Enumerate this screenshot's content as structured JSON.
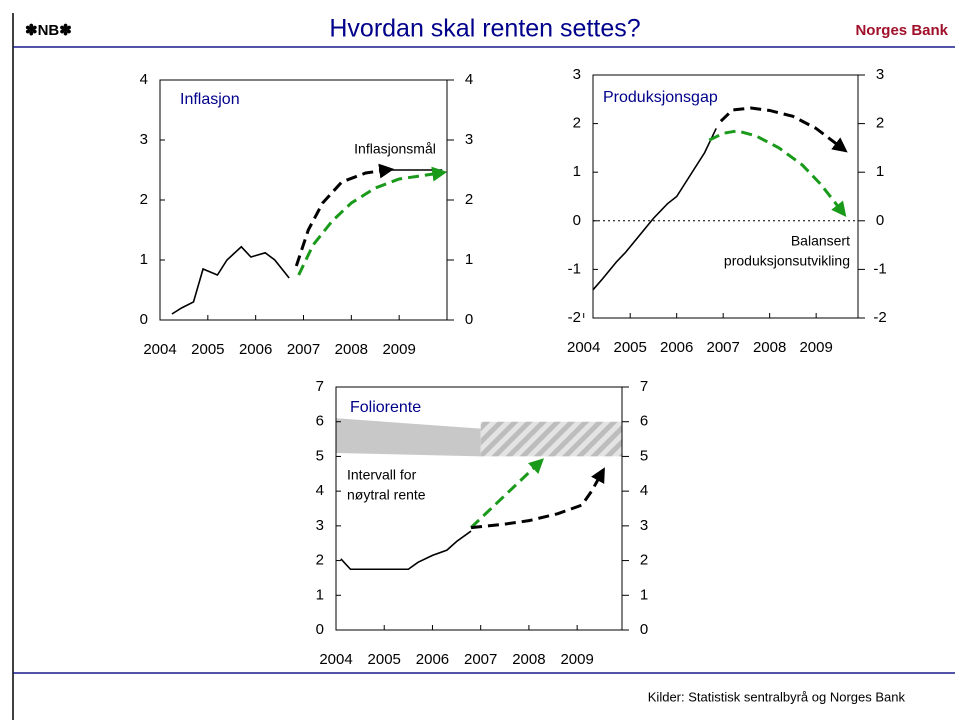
{
  "header": {
    "logo": "✽NB✽",
    "title": "Hvordan skal renten settes?",
    "brand": "Norges Bank"
  },
  "footer": "Kilder: Statistisk sentralbyrå og Norges Bank",
  "chart_data": [
    {
      "type": "line",
      "title": "Inflasjon",
      "annotations": [
        [
          "Inflasjonsmål"
        ]
      ],
      "xlim": [
        2004,
        2010
      ],
      "xticks": [
        2004,
        2005,
        2006,
        2007,
        2008,
        2009
      ],
      "ylim": [
        0,
        4
      ],
      "yticks": [
        0,
        1,
        2,
        3,
        4
      ],
      "y2lim": [
        0,
        4
      ],
      "y2ticks": [
        0,
        1,
        2,
        3,
        4
      ],
      "series": [
        {
          "color": "#000000",
          "x": [
            2004.25,
            2004.45,
            2004.7,
            2004.9,
            2005.2,
            2005.4,
            2005.7,
            2005.9,
            2006.2,
            2006.4,
            2006.7
          ],
          "values": [
            0.1,
            0.2,
            0.3,
            0.85,
            0.75,
            1.0,
            1.22,
            1.05,
            1.12,
            1.0,
            0.7
          ]
        },
        {
          "color": "#000000",
          "dash": true,
          "arrow": true,
          "x": [
            2006.85,
            2007.1,
            2007.4,
            2007.8,
            2008.3,
            2008.74
          ],
          "values": [
            0.9,
            1.5,
            1.95,
            2.3,
            2.45,
            2.5
          ]
        },
        {
          "color": "#000000",
          "x": [
            2008.74,
            2009.9
          ],
          "values": [
            2.5,
            2.5
          ]
        },
        {
          "color": "#1a9a1a",
          "dash": true,
          "arrow": true,
          "x": [
            2006.9,
            2007.2,
            2007.6,
            2008,
            2008.5,
            2009,
            2009.85
          ],
          "values": [
            0.75,
            1.25,
            1.65,
            1.95,
            2.2,
            2.35,
            2.45
          ]
        }
      ]
    },
    {
      "type": "line",
      "title": "Produksjonsgap",
      "annotations": [
        [
          "Balansert",
          "produksjonsutvikling"
        ]
      ],
      "xlim": [
        2004.2,
        2009.9
      ],
      "xticks": [
        2005,
        2006,
        2007,
        2008,
        2009,
        2004
      ],
      "ylim": [
        -2,
        3
      ],
      "yticks": [
        -2,
        -1,
        0,
        1,
        2,
        3
      ],
      "y2lim": [
        -2,
        3
      ],
      "y2ticks": [
        -2,
        -1,
        0,
        1,
        2,
        3
      ],
      "reference_line": 0,
      "series": [
        {
          "color": "#000000",
          "x": [
            2004.2,
            2004.4,
            2004.7,
            2004.9,
            2005.2,
            2005.5,
            2005.8,
            2006.0,
            2006.3,
            2006.6,
            2006.85
          ],
          "values": [
            -1.42,
            -1.2,
            -0.85,
            -0.65,
            -0.3,
            0.05,
            0.35,
            0.5,
            0.95,
            1.4,
            1.9
          ]
        },
        {
          "color": "#000000",
          "dash": true,
          "arrow": true,
          "x": [
            2006.95,
            2007.2,
            2007.6,
            2008,
            2008.5,
            2009,
            2009.55
          ],
          "values": [
            2.05,
            2.28,
            2.32,
            2.27,
            2.15,
            1.9,
            1.5
          ]
        },
        {
          "color": "#1a9a1a",
          "dash": true,
          "arrow": true,
          "x": [
            2006.7,
            2007,
            2007.3,
            2007.7,
            2008.2,
            2008.7,
            2009.1,
            2009.55
          ],
          "values": [
            1.66,
            1.8,
            1.85,
            1.75,
            1.5,
            1.15,
            0.75,
            0.2
          ]
        }
      ]
    },
    {
      "type": "line",
      "title": "Foliorente",
      "annotations": [
        [
          "Intervall for",
          "nøytral rente"
        ]
      ],
      "xlim": [
        2004,
        2009.93
      ],
      "xticks": [
        2004,
        2005,
        2006,
        2007,
        2008,
        2009
      ],
      "ylim": [
        0,
        7
      ],
      "yticks": [
        0,
        1,
        2,
        3,
        4,
        5,
        6,
        7
      ],
      "y2lim": [
        0,
        7
      ],
      "y2ticks": [
        0,
        1,
        2,
        3,
        4,
        5,
        6,
        7
      ],
      "series": [
        {
          "band": true,
          "color": "#c8c8c8",
          "x": [
            2004,
            2007
          ],
          "upper": [
            6.1,
            5.8
          ],
          "lower": [
            5.1,
            5.0
          ]
        },
        {
          "band": true,
          "hatch": true,
          "color": "#c8c8c8",
          "x": [
            2007,
            2009.93
          ],
          "upper": [
            6,
            6
          ],
          "lower": [
            5,
            5
          ]
        },
        {
          "color": "#000000",
          "x": [
            2004.1,
            2004.3,
            2005,
            2005.5,
            2005.7,
            2006,
            2006.3,
            2006.5,
            2006.8
          ],
          "values": [
            2.05,
            1.75,
            1.75,
            1.75,
            1.95,
            2.15,
            2.3,
            2.55,
            2.85
          ]
        },
        {
          "color": "#1a9a1a",
          "dash": true,
          "arrow": true,
          "x": [
            2006.8,
            2008.2
          ],
          "values": [
            2.95,
            4.8
          ]
        },
        {
          "color": "#000000",
          "dash": true,
          "arrow": true,
          "x": [
            2006.8,
            2007.5,
            2008,
            2008.6,
            2009.1,
            2009.3,
            2009.5
          ],
          "values": [
            2.95,
            3.05,
            3.15,
            3.35,
            3.6,
            4.0,
            4.5
          ]
        }
      ]
    }
  ]
}
